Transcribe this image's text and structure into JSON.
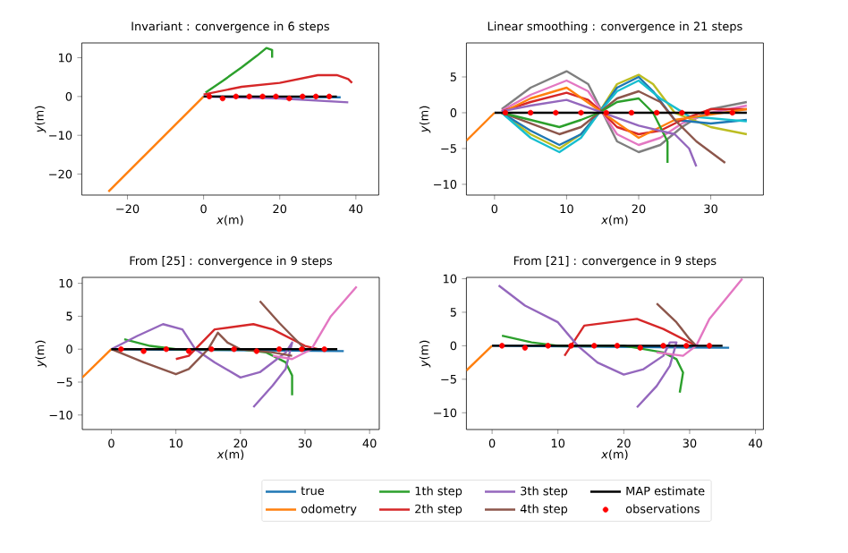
{
  "chart_data": [
    {
      "type": "line",
      "title": "Invariant : convergence in 6 steps",
      "xlabel": "*x*(m)",
      "ylabel": "*y*(m)",
      "xlim": [
        -32,
        46
      ],
      "ylim": [
        -25.4,
        13.8
      ],
      "xticks": [
        {
          "value": -20,
          "label": "−20"
        },
        0,
        20,
        40
      ],
      "yticks": [
        {
          "value": -20,
          "label": "−20"
        },
        {
          "value": -10,
          "label": "−10"
        },
        0,
        10
      ],
      "series": [
        {
          "color": "#1f77b4",
          "x": [
            0,
            36
          ],
          "values": [
            0,
            -0.2
          ]
        },
        {
          "color": "#ff7f0e",
          "x": [
            0,
            -25
          ],
          "values": [
            0,
            -24.5
          ]
        },
        {
          "color": "#2ca02c",
          "x": [
            0.5,
            5,
            10,
            14,
            16.5,
            18,
            18
          ],
          "values": [
            1,
            4,
            7.5,
            10.5,
            12.5,
            12,
            10
          ]
        },
        {
          "color": "#d62728",
          "x": [
            0,
            10,
            20,
            30,
            35,
            38,
            39
          ],
          "values": [
            0.5,
            2.5,
            3.5,
            5.5,
            5.5,
            4.5,
            3.5
          ]
        },
        {
          "color": "#9467bd",
          "x": [
            0,
            20,
            38
          ],
          "values": [
            0,
            -0.5,
            -1.5
          ]
        },
        {
          "color": "#000000",
          "x": [
            0,
            35
          ],
          "values": [
            0,
            0
          ]
        },
        {
          "type": "scatter",
          "color": "#ff0000",
          "x": [
            1.5,
            5,
            8.5,
            12,
            15.5,
            19,
            22.5,
            26,
            29.5,
            33
          ],
          "values": [
            0,
            -0.5,
            0,
            0,
            0,
            0,
            -0.5,
            0,
            0,
            0
          ]
        }
      ]
    },
    {
      "type": "line",
      "title": "Linear smoothing : convergence in 21 steps",
      "xlabel": "*x*(m)",
      "ylabel": "*y*(m)",
      "xlim": [
        -3.9,
        37.3
      ],
      "ylim": [
        -11.5,
        9.75
      ],
      "xticks": [
        0,
        10,
        20,
        30
      ],
      "yticks": [
        {
          "value": -10,
          "label": "−10"
        },
        {
          "value": -5,
          "label": "−5"
        },
        0,
        5
      ],
      "series": [
        {
          "color": "#7f7f7f",
          "x": [
            1,
            5,
            10,
            13,
            15,
            17,
            20,
            23,
            26,
            30,
            35
          ],
          "values": [
            0.5,
            3.5,
            5.8,
            4,
            0,
            -4,
            -5.5,
            -4.5,
            -2,
            0.5,
            1.5
          ]
        },
        {
          "color": "#e377c2",
          "x": [
            1,
            5,
            10,
            13,
            15,
            17,
            20,
            23,
            26,
            30,
            35
          ],
          "values": [
            0.3,
            2.5,
            4.5,
            3,
            0,
            -3,
            -4.5,
            -3.5,
            -1.5,
            0,
            1
          ]
        },
        {
          "color": "#bcbd22",
          "x": [
            1,
            5,
            9,
            12,
            14.5,
            17,
            20,
            22,
            25,
            30,
            35
          ],
          "values": [
            0,
            -3,
            -5,
            -3,
            0,
            4,
            5.3,
            4,
            0,
            -2,
            -3
          ]
        },
        {
          "color": "#1f77b4",
          "x": [
            1,
            5,
            9,
            12,
            14.5,
            17,
            20,
            22,
            25,
            30,
            35
          ],
          "values": [
            0,
            -2.5,
            -4.5,
            -3,
            0,
            3.5,
            5,
            3,
            -1,
            -1.5,
            -1
          ]
        },
        {
          "color": "#17becf",
          "x": [
            1,
            5,
            9,
            12,
            14.5,
            17,
            20,
            23,
            27,
            35
          ],
          "values": [
            0,
            -3.5,
            -5.5,
            -3.5,
            0,
            3,
            4.5,
            2,
            -0.5,
            -1.2
          ]
        },
        {
          "color": "#d62728",
          "x": [
            1,
            5,
            10,
            13,
            15,
            17,
            20,
            23,
            26,
            30,
            35
          ],
          "values": [
            0.2,
            1.5,
            2.8,
            1.8,
            0,
            -2,
            -3,
            -2.5,
            -1,
            0.5,
            0.5
          ]
        },
        {
          "color": "#ff7f0e",
          "x": [
            1,
            5,
            10,
            15,
            20,
            25,
            35
          ],
          "values": [
            0,
            2,
            3.5,
            0,
            -3.5,
            -1,
            0.5
          ]
        },
        {
          "color": "#8c564b",
          "x": [
            1,
            5,
            9,
            12,
            14.5,
            17,
            20,
            23,
            25,
            28,
            32
          ],
          "values": [
            0,
            -1.5,
            -3,
            -2,
            0,
            2,
            3,
            1.5,
            -1,
            -4,
            -7
          ]
        },
        {
          "color": "#2ca02c",
          "x": [
            1,
            5,
            9,
            12,
            14.5,
            17,
            20,
            22,
            24,
            24
          ],
          "values": [
            0,
            -1,
            -2,
            -1,
            0,
            1.5,
            2,
            0,
            -4,
            -7
          ]
        },
        {
          "color": "#9467bd",
          "x": [
            1,
            5,
            10,
            15,
            20,
            25,
            27,
            28
          ],
          "values": [
            0.2,
            1,
            1.8,
            0,
            -1.8,
            -3,
            -5,
            -7.5
          ]
        },
        {
          "color": "#ff7f0e",
          "x": [
            0,
            -3.9
          ],
          "values": [
            0,
            -3.9
          ]
        },
        {
          "color": "#000000",
          "x": [
            0,
            35
          ],
          "values": [
            0,
            0
          ]
        },
        {
          "type": "scatter",
          "color": "#ff0000",
          "x": [
            1.5,
            5,
            8.5,
            12,
            15.5,
            19,
            22.5,
            26,
            29.5,
            33
          ],
          "values": [
            0,
            0,
            0,
            0,
            0,
            0,
            0,
            0,
            0,
            0
          ]
        }
      ]
    },
    {
      "type": "line",
      "title": "From [25] : convergence in 9 steps",
      "xlabel": "*x*(m)",
      "ylabel": "*y*(m)",
      "xlim": [
        -4.5,
        41.5
      ],
      "ylim": [
        -12.2,
        10.9
      ],
      "xticks": [
        0,
        10,
        20,
        30,
        40
      ],
      "yticks": [
        {
          "value": -10,
          "label": "−10"
        },
        {
          "value": -5,
          "label": "−5"
        },
        0,
        5,
        10
      ],
      "series": [
        {
          "color": "#1f77b4",
          "x": [
            0,
            36
          ],
          "values": [
            0,
            -0.3
          ]
        },
        {
          "color": "#ff7f0e",
          "x": [
            0,
            -4.5
          ],
          "values": [
            0,
            -4.3
          ]
        },
        {
          "color": "#2ca02c",
          "x": [
            2,
            6,
            10,
            20,
            24,
            27,
            28,
            28
          ],
          "values": [
            1.5,
            0.5,
            0,
            0,
            -0.5,
            -2,
            -4,
            -7
          ]
        },
        {
          "color": "#d62728",
          "x": [
            10,
            12,
            14,
            16,
            22,
            25,
            28,
            30,
            32
          ],
          "values": [
            -1.5,
            -1,
            1,
            3,
            3.8,
            3,
            1.5,
            0.5,
            0
          ]
        },
        {
          "color": "#9467bd",
          "x": [
            0,
            4,
            8,
            11,
            13,
            16,
            20,
            23,
            25,
            27,
            28,
            27,
            25,
            22
          ],
          "values": [
            0,
            2,
            3.8,
            3,
            0,
            -2,
            -4.3,
            -3.5,
            -2,
            -0.5,
            1,
            -3,
            -5.5,
            -8.8
          ]
        },
        {
          "color": "#8c564b",
          "x": [
            0,
            5,
            10,
            12,
            15,
            16.5,
            18,
            20,
            25,
            28
          ],
          "values": [
            0,
            -2,
            -3.8,
            -3,
            0,
            2.5,
            1,
            0,
            -0.5,
            -1
          ]
        },
        {
          "color": "#8c564b",
          "x": [
            23,
            26,
            28,
            30
          ],
          "values": [
            7.3,
            4,
            2,
            0
          ]
        },
        {
          "color": "#e377c2",
          "x": [
            25,
            28,
            31,
            34,
            38
          ],
          "values": [
            -1,
            -1.5,
            0,
            5,
            9.5
          ]
        },
        {
          "color": "#000000",
          "x": [
            0,
            35
          ],
          "values": [
            0,
            0
          ]
        },
        {
          "type": "scatter",
          "color": "#ff0000",
          "x": [
            1.5,
            5,
            8.5,
            12,
            15.5,
            19,
            22.5,
            26,
            29.5,
            33
          ],
          "values": [
            0,
            -0.3,
            0,
            -0.3,
            0,
            0,
            -0.3,
            0,
            0,
            0
          ]
        }
      ]
    },
    {
      "type": "line",
      "title": "From [21] : convergence in 9 steps",
      "xlabel": "*x*(m)",
      "ylabel": "*y*(m)",
      "xlim": [
        -3.9,
        41.2
      ],
      "ylim": [
        -12.5,
        10.2
      ],
      "legend": "bottom",
      "xticks": [
        0,
        10,
        20,
        30,
        40
      ],
      "yticks": [
        {
          "value": -10,
          "label": "−10"
        },
        {
          "value": -5,
          "label": "−5"
        },
        0,
        5,
        10
      ],
      "series": [
        {
          "name": "true",
          "color": "#1f77b4",
          "x": [
            0,
            36
          ],
          "values": [
            0,
            -0.3
          ]
        },
        {
          "name": "odometry",
          "color": "#ff7f0e",
          "x": [
            0,
            -3.9
          ],
          "values": [
            0,
            -3.7
          ]
        },
        {
          "name": "1th step",
          "color": "#2ca02c",
          "x": [
            1.5,
            6,
            10,
            20,
            26,
            28,
            29,
            28.5
          ],
          "values": [
            1.5,
            0.5,
            0,
            0,
            -1,
            -2,
            -4,
            -7
          ]
        },
        {
          "name": "2th step",
          "color": "#d62728",
          "x": [
            11,
            12,
            14,
            18,
            22,
            26,
            29,
            31
          ],
          "values": [
            -1.5,
            0,
            3,
            3.5,
            4,
            2.5,
            1,
            0
          ]
        },
        {
          "name": "3th step",
          "color": "#9467bd",
          "x": [
            1,
            5,
            10,
            13,
            16,
            20,
            23,
            26,
            27,
            28,
            27,
            25,
            22
          ],
          "values": [
            9,
            6,
            3.5,
            0,
            -2.5,
            -4.3,
            -3.5,
            -1.5,
            0.5,
            0.5,
            -3,
            -6,
            -9.2
          ]
        },
        {
          "name": "4th step",
          "color": "#8c564b",
          "x": [
            25,
            28,
            30,
            31
          ],
          "values": [
            6.3,
            3.5,
            1,
            0
          ]
        },
        {
          "color": "#e377c2",
          "x": [
            25,
            29,
            31,
            33,
            38
          ],
          "values": [
            -1,
            -1.5,
            0,
            4,
            10
          ]
        },
        {
          "name": "MAP estimate",
          "color": "#000000",
          "x": [
            0,
            35
          ],
          "values": [
            0,
            0
          ]
        },
        {
          "name": "observations",
          "type": "scatter",
          "color": "#ff0000",
          "x": [
            1.5,
            5,
            8.5,
            12,
            15.5,
            19,
            22.5,
            26,
            29.5,
            33
          ],
          "values": [
            0,
            -0.3,
            0,
            0,
            0,
            0,
            -0.3,
            0,
            0,
            0
          ]
        }
      ]
    }
  ]
}
